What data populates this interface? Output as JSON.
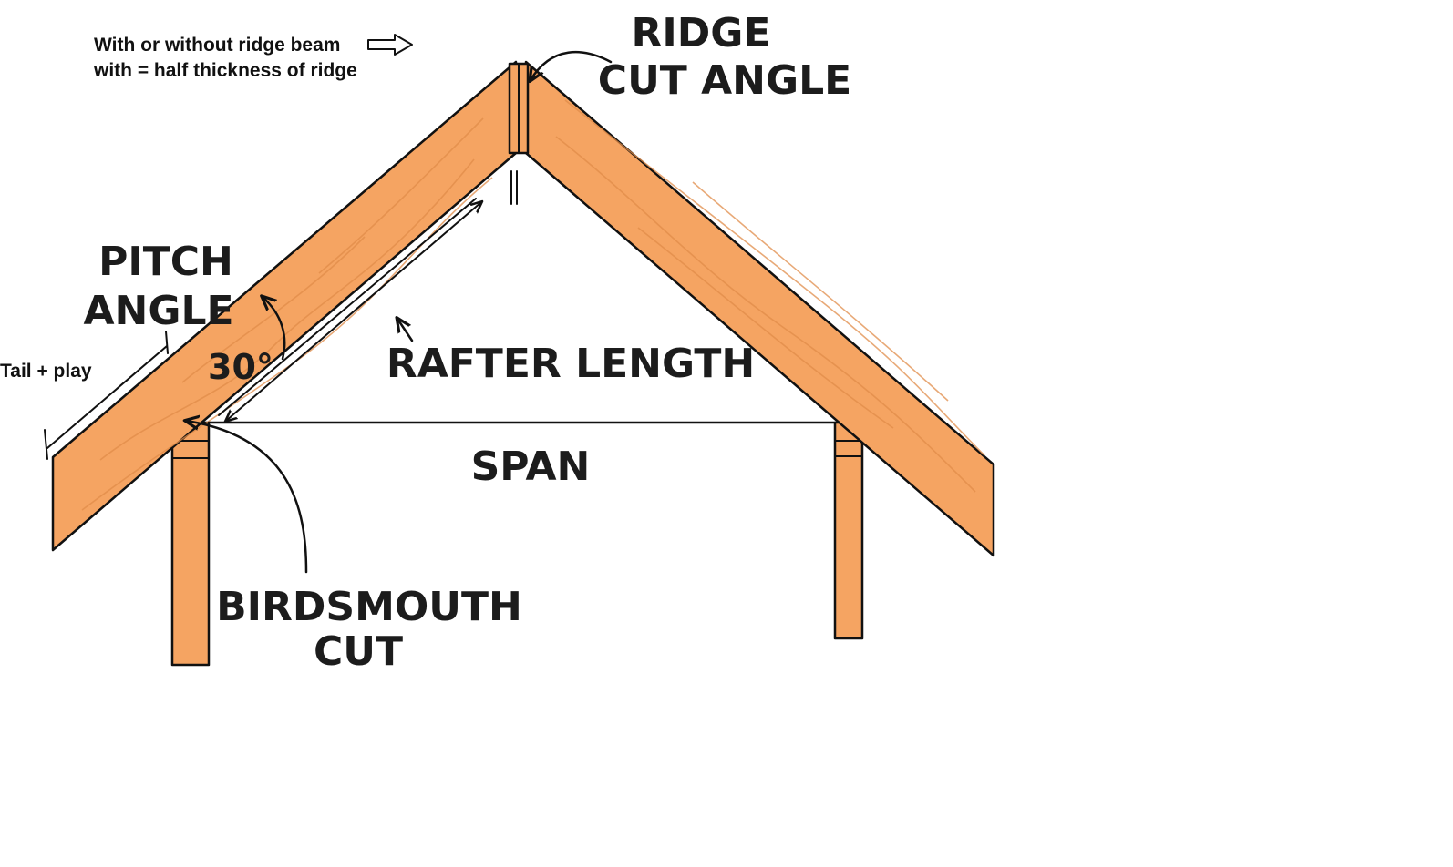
{
  "note": {
    "line1": "With or without ridge beam",
    "line2": "with = half thickness of ridge"
  },
  "labels": {
    "ridge_line1": "RIDGE",
    "ridge_line2": "CUT ANGLE",
    "pitch_line1": "PITCH",
    "pitch_line2": "ANGLE",
    "pitch_value": "30°",
    "tail": "Tail + play",
    "rafter_length": "RAFTER LENGTH",
    "span": "SPAN",
    "birdsmouth_line1": "BIRDSMOUTH",
    "birdsmouth_line2": "CUT"
  },
  "colors": {
    "wood": "#f5a462",
    "wood_grain": "#e08c4a",
    "ink": "#111111",
    "background": "#ffffff"
  },
  "icons": {
    "note_arrow": "hollow-right-arrow-icon"
  }
}
